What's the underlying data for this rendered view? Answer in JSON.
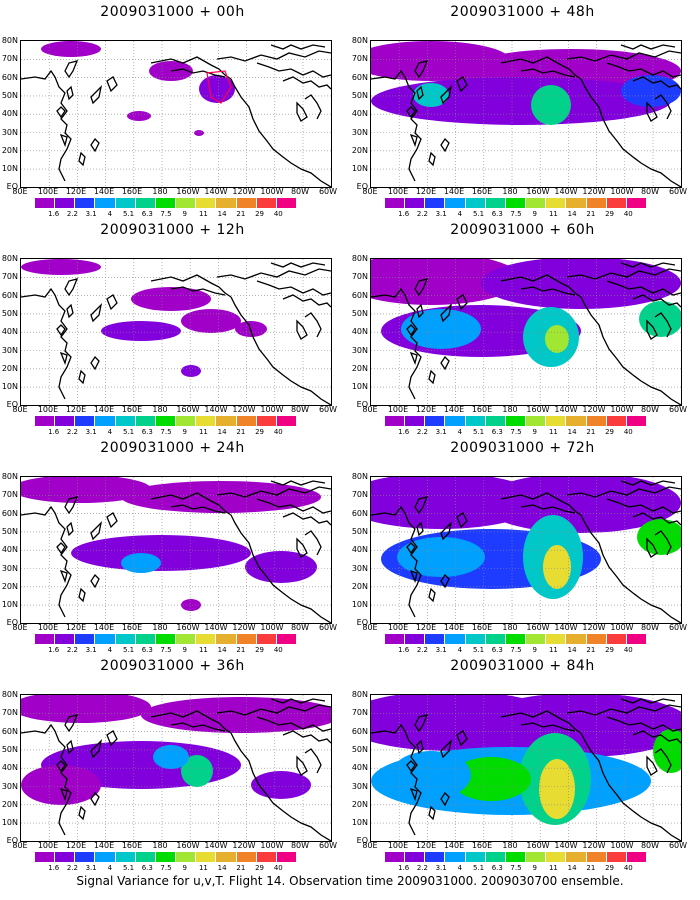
{
  "colorbar": {
    "levels": [
      "1.6",
      "2.2",
      "3.1",
      "4",
      "5.1",
      "6.3",
      "7.5",
      "9",
      "11",
      "14",
      "21",
      "29",
      "40"
    ],
    "colors": [
      "#a000c8",
      "#8200dc",
      "#1e3cff",
      "#00a0ff",
      "#00c8c8",
      "#00d28c",
      "#00dc00",
      "#a0e632",
      "#e6dc32",
      "#e6af2d",
      "#f08228",
      "#fa3c3c",
      "#f00082"
    ]
  },
  "axes": {
    "lat_labels": [
      "80N",
      "70N",
      "60N",
      "50N",
      "40N",
      "30N",
      "20N",
      "10N",
      "EQ"
    ],
    "lon_labels": [
      "80E",
      "100E",
      "120E",
      "140E",
      "160E",
      "180",
      "160W",
      "140W",
      "120W",
      "100W",
      "80W",
      "60W"
    ]
  },
  "panels": [
    {
      "title": "2009031000 + 00h",
      "intensity": 0
    },
    {
      "title": "2009031000 + 12h",
      "intensity": 1
    },
    {
      "title": "2009031000 + 24h",
      "intensity": 2
    },
    {
      "title": "2009031000 + 36h",
      "intensity": 3
    },
    {
      "title": "2009031000 + 48h",
      "intensity": 4
    },
    {
      "title": "2009031000 + 60h",
      "intensity": 5
    },
    {
      "title": "2009031000 + 72h",
      "intensity": 6
    },
    {
      "title": "2009031000 + 84h",
      "intensity": 7
    }
  ],
  "footer": "Signal Variance for u,v,T. Flight 14. Observation time 2009031000. 2009030700 ensemble."
}
